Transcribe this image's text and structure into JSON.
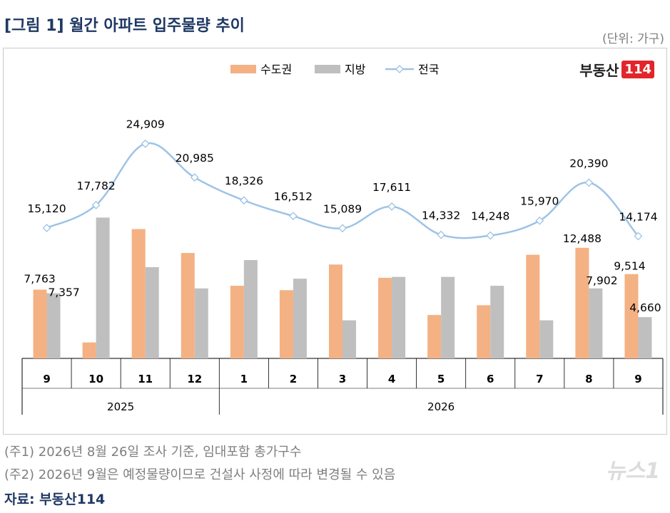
{
  "title": "[그림 1] 월간 아파트 입주물량 추이",
  "unit": "(단위: 가구)",
  "brand": {
    "text": "부동산",
    "box": "114"
  },
  "notes": [
    "(주1) 2026년 8월 26일 조사 기준, 임대포함 총가구수",
    "(주2) 2026년 9월은 예정물량이므로 건설사 사정에 따라 변경될 수 있음"
  ],
  "source": "자료: 부동산114",
  "watermark": "뉴스1",
  "colors": {
    "capital": "#f4b183",
    "local": "#bfbfbf",
    "national": "#9dc3e6"
  },
  "chart_data": {
    "type": "bar",
    "categories": [
      "9",
      "10",
      "11",
      "12",
      "1",
      "2",
      "3",
      "4",
      "5",
      "6",
      "7",
      "8",
      "9"
    ],
    "years": [
      {
        "label": "2025",
        "start": 0,
        "end": 3
      },
      {
        "label": "2026",
        "start": 4,
        "end": 12
      }
    ],
    "series": [
      {
        "name": "수도권",
        "type": "bar",
        "values": [
          7763,
          1800,
          14600,
          11900,
          8200,
          7700,
          10600,
          9100,
          4900,
          6000,
          11700,
          12488,
          9514
        ]
      },
      {
        "name": "지방",
        "type": "bar",
        "values": [
          7357,
          15900,
          10300,
          7900,
          11100,
          9000,
          4300,
          9200,
          9200,
          8200,
          4300,
          7902,
          4660
        ]
      },
      {
        "name": "전국",
        "type": "line",
        "values": [
          15120,
          17782,
          24909,
          20985,
          18326,
          16512,
          15089,
          17611,
          14332,
          14248,
          15970,
          20390,
          14174
        ]
      }
    ],
    "bar_labels": [
      {
        "series": 0,
        "index": 0,
        "text": "7,763"
      },
      {
        "series": 1,
        "index": 0,
        "text": "7,357"
      },
      {
        "series": 0,
        "index": 11,
        "text": "12,488"
      },
      {
        "series": 1,
        "index": 11,
        "text": "7,902"
      },
      {
        "series": 0,
        "index": 12,
        "text": "9,514"
      },
      {
        "series": 1,
        "index": 12,
        "text": "4,660"
      }
    ],
    "line_labels": [
      "15,120",
      "17,782",
      "24,909",
      "20,985",
      "18,326",
      "16,512",
      "15,089",
      "17,611",
      "14,332",
      "14,248",
      "15,970",
      "20,390",
      "14,174"
    ],
    "legend": [
      "수도권",
      "지방",
      "전국"
    ]
  }
}
